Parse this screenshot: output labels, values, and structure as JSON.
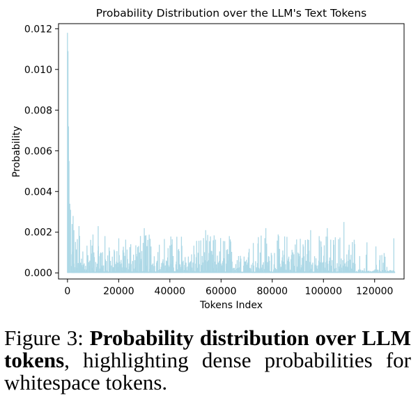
{
  "chart_data": {
    "type": "bar",
    "title": "Probability Distribution over the LLM's Text Tokens",
    "xlabel": "Tokens Index",
    "ylabel": "Probability",
    "xlim": [
      -3500,
      131500
    ],
    "ylim": [
      -0.0003,
      0.01225
    ],
    "xticks": [
      0,
      20000,
      40000,
      60000,
      80000,
      100000,
      120000
    ],
    "xtick_labels": [
      "0",
      "20000",
      "40000",
      "60000",
      "80000",
      "100000",
      "120000"
    ],
    "yticks": [
      0.0,
      0.002,
      0.004,
      0.006,
      0.008,
      0.01,
      0.012
    ],
    "ytick_labels": [
      "0.000",
      "0.002",
      "0.004",
      "0.006",
      "0.008",
      "0.010",
      "0.012"
    ],
    "bar_color": "#add8e6",
    "x_max_token": 128000,
    "grid": false,
    "peaks": [
      {
        "x": 0,
        "y": 0.0118
      },
      {
        "x": 200,
        "y": 0.0109
      },
      {
        "x": 400,
        "y": 0.0072
      },
      {
        "x": 600,
        "y": 0.0055
      },
      {
        "x": 900,
        "y": 0.0034
      },
      {
        "x": 1200,
        "y": 0.0031
      },
      {
        "x": 1800,
        "y": 0.0024
      },
      {
        "x": 2500,
        "y": 0.0021
      },
      {
        "x": 2200,
        "y": 0.0028
      },
      {
        "x": 4500,
        "y": 0.0023
      },
      {
        "x": 12000,
        "y": 0.0023
      },
      {
        "x": 30000,
        "y": 0.0022
      },
      {
        "x": 54000,
        "y": 0.0021
      },
      {
        "x": 77500,
        "y": 0.0022
      },
      {
        "x": 95000,
        "y": 0.0021
      },
      {
        "x": 101500,
        "y": 0.0022
      },
      {
        "x": 108000,
        "y": 0.0025
      },
      {
        "x": 117000,
        "y": 0.0015
      },
      {
        "x": 120500,
        "y": 0.0013
      },
      {
        "x": 127500,
        "y": 0.0017
      }
    ],
    "typical_max": 0.0019
  },
  "caption": {
    "prefix": "Figure 3: ",
    "bold": "Probability distribution over LLM tokens",
    "rest": ", highlighting dense probabilities for whitespace tokens."
  }
}
